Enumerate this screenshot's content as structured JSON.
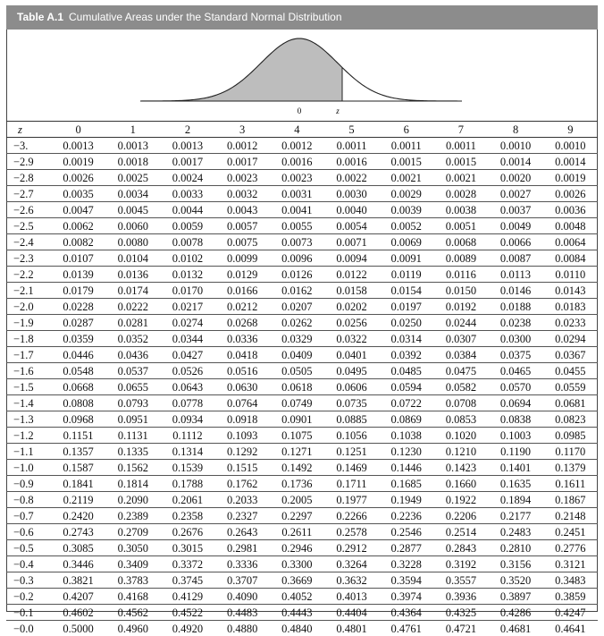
{
  "title": {
    "label": "Table A.1",
    "text": "Cumulative Areas under the Standard Normal Distribution"
  },
  "figure": {
    "mean_label": "0",
    "z_label": "z",
    "shaded_up_to_z": true
  },
  "colors": {
    "title_bar": "#8c8c8c",
    "shade": "#bdbdbd"
  },
  "table": {
    "z_header": "z",
    "columns": [
      "0",
      "1",
      "2",
      "3",
      "4",
      "5",
      "6",
      "7",
      "8",
      "9"
    ],
    "rows": [
      {
        "z": "−3.",
        "values": [
          "0.0013",
          "0.0013",
          "0.0013",
          "0.0012",
          "0.0012",
          "0.0011",
          "0.0011",
          "0.0011",
          "0.0010",
          "0.0010"
        ]
      },
      {
        "z": "−2.9",
        "values": [
          "0.0019",
          "0.0018",
          "0.0017",
          "0.0017",
          "0.0016",
          "0.0016",
          "0.0015",
          "0.0015",
          "0.0014",
          "0.0014"
        ]
      },
      {
        "z": "−2.8",
        "values": [
          "0.0026",
          "0.0025",
          "0.0024",
          "0.0023",
          "0.0023",
          "0.0022",
          "0.0021",
          "0.0021",
          "0.0020",
          "0.0019"
        ]
      },
      {
        "z": "−2.7",
        "values": [
          "0.0035",
          "0.0034",
          "0.0033",
          "0.0032",
          "0.0031",
          "0.0030",
          "0.0029",
          "0.0028",
          "0.0027",
          "0.0026"
        ]
      },
      {
        "z": "−2.6",
        "values": [
          "0.0047",
          "0.0045",
          "0.0044",
          "0.0043",
          "0.0041",
          "0.0040",
          "0.0039",
          "0.0038",
          "0.0037",
          "0.0036"
        ]
      },
      {
        "z": "−2.5",
        "values": [
          "0.0062",
          "0.0060",
          "0.0059",
          "0.0057",
          "0.0055",
          "0.0054",
          "0.0052",
          "0.0051",
          "0.0049",
          "0.0048"
        ]
      },
      {
        "z": "−2.4",
        "values": [
          "0.0082",
          "0.0080",
          "0.0078",
          "0.0075",
          "0.0073",
          "0.0071",
          "0.0069",
          "0.0068",
          "0.0066",
          "0.0064"
        ]
      },
      {
        "z": "−2.3",
        "values": [
          "0.0107",
          "0.0104",
          "0.0102",
          "0.0099",
          "0.0096",
          "0.0094",
          "0.0091",
          "0.0089",
          "0.0087",
          "0.0084"
        ]
      },
      {
        "z": "−2.2",
        "values": [
          "0.0139",
          "0.0136",
          "0.0132",
          "0.0129",
          "0.0126",
          "0.0122",
          "0.0119",
          "0.0116",
          "0.0113",
          "0.0110"
        ]
      },
      {
        "z": "−2.1",
        "values": [
          "0.0179",
          "0.0174",
          "0.0170",
          "0.0166",
          "0.0162",
          "0.0158",
          "0.0154",
          "0.0150",
          "0.0146",
          "0.0143"
        ]
      },
      {
        "z": "−2.0",
        "values": [
          "0.0228",
          "0.0222",
          "0.0217",
          "0.0212",
          "0.0207",
          "0.0202",
          "0.0197",
          "0.0192",
          "0.0188",
          "0.0183"
        ]
      },
      {
        "z": "−1.9",
        "values": [
          "0.0287",
          "0.0281",
          "0.0274",
          "0.0268",
          "0.0262",
          "0.0256",
          "0.0250",
          "0.0244",
          "0.0238",
          "0.0233"
        ]
      },
      {
        "z": "−1.8",
        "values": [
          "0.0359",
          "0.0352",
          "0.0344",
          "0.0336",
          "0.0329",
          "0.0322",
          "0.0314",
          "0.0307",
          "0.0300",
          "0.0294"
        ]
      },
      {
        "z": "−1.7",
        "values": [
          "0.0446",
          "0.0436",
          "0.0427",
          "0.0418",
          "0.0409",
          "0.0401",
          "0.0392",
          "0.0384",
          "0.0375",
          "0.0367"
        ]
      },
      {
        "z": "−1.6",
        "values": [
          "0.0548",
          "0.0537",
          "0.0526",
          "0.0516",
          "0.0505",
          "0.0495",
          "0.0485",
          "0.0475",
          "0.0465",
          "0.0455"
        ]
      },
      {
        "z": "−1.5",
        "values": [
          "0.0668",
          "0.0655",
          "0.0643",
          "0.0630",
          "0.0618",
          "0.0606",
          "0.0594",
          "0.0582",
          "0.0570",
          "0.0559"
        ]
      },
      {
        "z": "−1.4",
        "values": [
          "0.0808",
          "0.0793",
          "0.0778",
          "0.0764",
          "0.0749",
          "0.0735",
          "0.0722",
          "0.0708",
          "0.0694",
          "0.0681"
        ]
      },
      {
        "z": "−1.3",
        "values": [
          "0.0968",
          "0.0951",
          "0.0934",
          "0.0918",
          "0.0901",
          "0.0885",
          "0.0869",
          "0.0853",
          "0.0838",
          "0.0823"
        ]
      },
      {
        "z": "−1.2",
        "values": [
          "0.1151",
          "0.1131",
          "0.1112",
          "0.1093",
          "0.1075",
          "0.1056",
          "0.1038",
          "0.1020",
          "0.1003",
          "0.0985"
        ]
      },
      {
        "z": "−1.1",
        "values": [
          "0.1357",
          "0.1335",
          "0.1314",
          "0.1292",
          "0.1271",
          "0.1251",
          "0.1230",
          "0.1210",
          "0.1190",
          "0.1170"
        ]
      },
      {
        "z": "−1.0",
        "values": [
          "0.1587",
          "0.1562",
          "0.1539",
          "0.1515",
          "0.1492",
          "0.1469",
          "0.1446",
          "0.1423",
          "0.1401",
          "0.1379"
        ]
      },
      {
        "z": "−0.9",
        "values": [
          "0.1841",
          "0.1814",
          "0.1788",
          "0.1762",
          "0.1736",
          "0.1711",
          "0.1685",
          "0.1660",
          "0.1635",
          "0.1611"
        ]
      },
      {
        "z": "−0.8",
        "values": [
          "0.2119",
          "0.2090",
          "0.2061",
          "0.2033",
          "0.2005",
          "0.1977",
          "0.1949",
          "0.1922",
          "0.1894",
          "0.1867"
        ]
      },
      {
        "z": "−0.7",
        "values": [
          "0.2420",
          "0.2389",
          "0.2358",
          "0.2327",
          "0.2297",
          "0.2266",
          "0.2236",
          "0.2206",
          "0.2177",
          "0.2148"
        ]
      },
      {
        "z": "−0.6",
        "values": [
          "0.2743",
          "0.2709",
          "0.2676",
          "0.2643",
          "0.2611",
          "0.2578",
          "0.2546",
          "0.2514",
          "0.2483",
          "0.2451"
        ]
      },
      {
        "z": "−0.5",
        "values": [
          "0.3085",
          "0.3050",
          "0.3015",
          "0.2981",
          "0.2946",
          "0.2912",
          "0.2877",
          "0.2843",
          "0.2810",
          "0.2776"
        ]
      },
      {
        "z": "−0.4",
        "values": [
          "0.3446",
          "0.3409",
          "0.3372",
          "0.3336",
          "0.3300",
          "0.3264",
          "0.3228",
          "0.3192",
          "0.3156",
          "0.3121"
        ]
      },
      {
        "z": "−0.3",
        "values": [
          "0.3821",
          "0.3783",
          "0.3745",
          "0.3707",
          "0.3669",
          "0.3632",
          "0.3594",
          "0.3557",
          "0.3520",
          "0.3483"
        ]
      },
      {
        "z": "−0.2",
        "values": [
          "0.4207",
          "0.4168",
          "0.4129",
          "0.4090",
          "0.4052",
          "0.4013",
          "0.3974",
          "0.3936",
          "0.3897",
          "0.3859"
        ]
      },
      {
        "z": "−0.1",
        "values": [
          "0.4602",
          "0.4562",
          "0.4522",
          "0.4483",
          "0.4443",
          "0.4404",
          "0.4364",
          "0.4325",
          "0.4286",
          "0.4247"
        ]
      },
      {
        "z": "−0.0",
        "values": [
          "0.5000",
          "0.4960",
          "0.4920",
          "0.4880",
          "0.4840",
          "0.4801",
          "0.4761",
          "0.4721",
          "0.4681",
          "0.4641"
        ]
      }
    ]
  }
}
